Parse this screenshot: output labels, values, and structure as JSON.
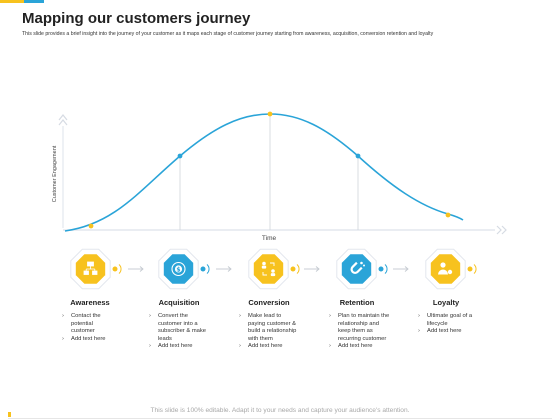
{
  "header": {
    "title": "Mapping our customers journey",
    "subtitle": "This slide provides a brief insight into the journey of your customer as it maps each stage of customer journey starting from awareness, acquisition, conversion retention and loyalty"
  },
  "chart": {
    "ylabel": "Customer Engagement",
    "xlabel": "Time"
  },
  "stages": [
    {
      "title": "Awareness",
      "color": "#f7c21e",
      "icon": "org-chart-icon",
      "items": [
        "Contact the potential customer",
        "Add text here"
      ]
    },
    {
      "title": "Acquisition",
      "color": "#2aa4d8",
      "icon": "dollar-rotate-icon",
      "items": [
        "Convert the customer into a subscriber & make leads",
        "Add text here"
      ]
    },
    {
      "title": "Conversion",
      "color": "#f7c21e",
      "icon": "people-exchange-icon",
      "items": [
        "Make lead to paying customer & build a relationship with them",
        "Add text here"
      ]
    },
    {
      "title": "Retention",
      "color": "#2aa4d8",
      "icon": "magnet-icon",
      "items": [
        "Plan to maintain the relationship and keep them as recurring customer",
        "Add text here"
      ]
    },
    {
      "title": "Loyalty",
      "color": "#f7c21e",
      "icon": "loyal-user-icon",
      "items": [
        "Ultimate goal of a lifecycle",
        "Add text here"
      ]
    }
  ],
  "footer": {
    "text": "This slide is 100% editable. Adapt it to your needs and capture your audience's attention."
  },
  "colors": {
    "yellow": "#f7c21e",
    "blue": "#2aa4d8",
    "text": "#222222"
  }
}
